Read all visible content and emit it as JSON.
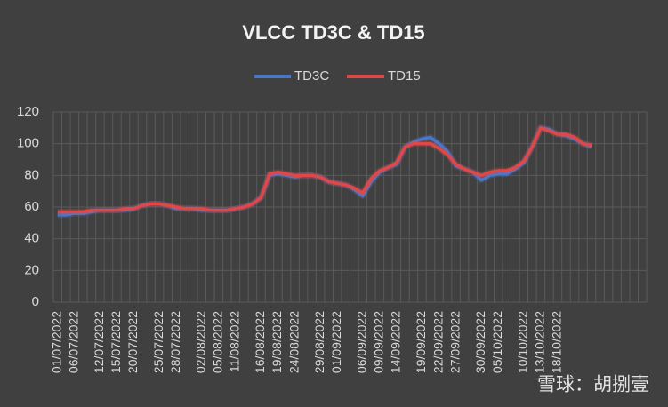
{
  "chart_data": {
    "type": "line",
    "title": "VLCC TD3C & TD15",
    "categories": [
      "01/07/2022",
      null,
      "06/07/2022",
      null,
      null,
      "12/07/2022",
      null,
      "15/07/2022",
      null,
      "20/07/2022",
      null,
      null,
      "25/07/2022",
      null,
      "28/07/2022",
      null,
      null,
      "02/08/2022",
      null,
      "05/08/2022",
      null,
      "11/08/2022",
      null,
      null,
      "16/08/2022",
      null,
      "19/08/2022",
      null,
      "24/08/2022",
      null,
      null,
      "29/08/2022",
      null,
      "01/09/2022",
      null,
      null,
      "06/09/2022",
      null,
      "09/09/2022",
      null,
      "14/09/2022",
      null,
      null,
      "19/09/2022",
      null,
      "22/09/2022",
      null,
      "27/09/2022",
      null,
      null,
      "30/09/2022",
      null,
      "05/10/2022",
      null,
      null,
      "10/10/2022",
      null,
      "13/10/2022",
      null,
      "18/10/2022",
      null,
      null,
      null,
      null,
      null,
      null,
      null,
      null,
      null,
      null
    ],
    "series": [
      {
        "name": "TD3C",
        "color": "#4a78c8",
        "values": [
          55,
          55,
          56,
          56,
          57,
          58,
          58,
          58,
          58,
          59,
          61,
          62,
          62,
          61,
          59,
          59,
          59,
          58,
          58,
          58,
          58,
          59,
          60,
          62,
          66,
          80,
          81,
          80,
          79,
          80,
          80,
          79,
          76,
          75,
          74,
          71,
          67,
          76,
          82,
          85,
          87,
          98,
          101,
          103,
          104,
          100,
          95,
          86,
          84,
          82,
          77,
          80,
          81,
          81,
          84,
          88,
          98,
          110,
          109,
          106,
          105,
          103,
          100,
          98,
          null,
          null,
          null,
          null,
          null,
          null
        ]
      },
      {
        "name": "TD15",
        "color": "#e04848",
        "values": [
          57,
          57,
          57,
          57,
          58,
          58,
          58,
          58,
          59,
          59,
          61,
          62,
          62,
          61,
          60,
          59,
          59,
          59,
          58,
          58,
          58,
          59,
          60,
          62,
          66,
          81,
          82,
          81,
          80,
          80,
          80,
          79,
          76,
          75,
          74,
          72,
          69,
          78,
          83,
          85,
          88,
          98,
          100,
          100,
          100,
          97,
          93,
          87,
          84,
          82,
          80,
          82,
          83,
          83,
          85,
          89,
          98,
          110,
          108,
          106,
          106,
          104,
          100,
          99,
          null,
          null,
          null,
          null,
          null,
          null
        ]
      }
    ],
    "ylim": [
      0,
      120
    ],
    "yticks": [
      0,
      20,
      40,
      60,
      80,
      100,
      120
    ],
    "grid": true,
    "legend": "top",
    "watermark": "雪球：胡捌壹"
  }
}
